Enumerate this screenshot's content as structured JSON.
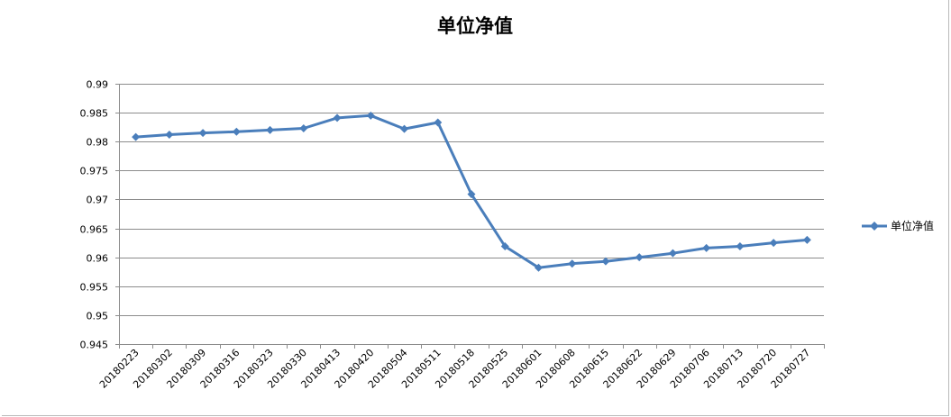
{
  "chart_data": {
    "type": "line",
    "title": "单位净值",
    "xlabel": "",
    "ylabel": "",
    "categories": [
      "20180223",
      "20180302",
      "20180309",
      "20180316",
      "20180323",
      "20180330",
      "20180413",
      "20180420",
      "20180504",
      "20180511",
      "20180518",
      "20180525",
      "20180601",
      "20180608",
      "20180615",
      "20180622",
      "20180629",
      "20180706",
      "20180713",
      "20180720",
      "20180727"
    ],
    "series": [
      {
        "name": "单位净值",
        "color": "#4a7ebb",
        "marker": "diamond",
        "values": [
          0.9808,
          0.9812,
          0.9815,
          0.9817,
          0.982,
          0.9823,
          0.9841,
          0.9845,
          0.9822,
          0.9833,
          0.9709,
          0.9619,
          0.9582,
          0.9589,
          0.9593,
          0.96,
          0.9607,
          0.9616,
          0.9619,
          0.9625,
          0.963
        ]
      }
    ],
    "ylim": [
      0.945,
      0.99
    ],
    "yticks": [
      "0.99",
      "0.985",
      "0.98",
      "0.975",
      "0.97",
      "0.965",
      "0.96",
      "0.955",
      "0.95",
      "0.945"
    ],
    "grid": true,
    "legend": "right"
  }
}
